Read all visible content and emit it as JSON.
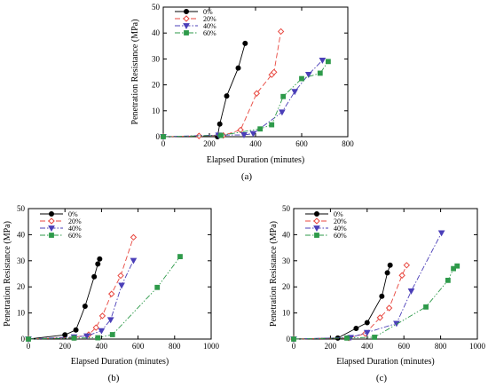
{
  "chart_data": [
    {
      "type": "line",
      "panel_label": "(a)",
      "xlabel": "Elapsed Duration (minutes)",
      "ylabel": "Penetration Resistance (MPa)",
      "xlim": [
        0,
        800
      ],
      "ylim": [
        0,
        50
      ],
      "xticks": [
        "0",
        "200",
        "400",
        "600",
        "800"
      ],
      "yticks": [
        "0",
        "10",
        "20",
        "30",
        "40",
        "50"
      ],
      "legend_position": "top-left",
      "series": [
        {
          "name": "0%",
          "color": "#000000",
          "dash": "solid",
          "marker": "filled-circle",
          "x": [
            0,
            235,
            245,
            275,
            325,
            355
          ],
          "y": [
            0,
            0,
            4.9,
            15.7,
            26.5,
            36
          ]
        },
        {
          "name": "20%",
          "color": "#e8473f",
          "dash": "long-dash",
          "marker": "open-diamond",
          "x": [
            0,
            155,
            260,
            335,
            405,
            470,
            480,
            510
          ],
          "y": [
            0,
            0.3,
            0.5,
            2.6,
            16.7,
            23.9,
            24.9,
            40.6
          ]
        },
        {
          "name": "40%",
          "color": "#4b3fb8",
          "dash": "dash-dot",
          "marker": "filled-triangle-down",
          "x": [
            0,
            240,
            350,
            390,
            515,
            570,
            630,
            690
          ],
          "y": [
            0,
            0.6,
            0.7,
            1.2,
            9.5,
            17.4,
            24.0,
            29.5
          ]
        },
        {
          "name": "60%",
          "color": "#2e9a4a",
          "dash": "dash-dot-dot",
          "marker": "filled-square",
          "x": [
            0,
            250,
            420,
            470,
            520,
            600,
            680,
            715
          ],
          "y": [
            0,
            0.5,
            3.0,
            4.6,
            15.5,
            22.4,
            24.5,
            29
          ]
        }
      ]
    },
    {
      "type": "line",
      "panel_label": "(b)",
      "xlabel": "Elapsed Duration (minutes)",
      "ylabel": "Penetration Resistance (MPa)",
      "xlim": [
        0,
        1000
      ],
      "ylim": [
        0,
        50
      ],
      "xticks": [
        "0",
        "200",
        "400",
        "600",
        "800",
        "1000"
      ],
      "yticks": [
        "0",
        "10",
        "20",
        "30",
        "40",
        "50"
      ],
      "legend_position": "top-left",
      "series": [
        {
          "name": "0%",
          "color": "#000000",
          "dash": "solid",
          "marker": "filled-circle",
          "x": [
            0,
            200,
            260,
            310,
            360,
            380,
            390
          ],
          "y": [
            0,
            1.6,
            3.5,
            12.6,
            23.9,
            28.8,
            30.7
          ]
        },
        {
          "name": "20%",
          "color": "#e8473f",
          "dash": "long-dash",
          "marker": "open-diamond",
          "x": [
            0,
            250,
            330,
            370,
            405,
            455,
            505,
            575
          ],
          "y": [
            0,
            0.6,
            1.7,
            4.4,
            8.9,
            17.3,
            24.3,
            39.0
          ]
        },
        {
          "name": "40%",
          "color": "#4b3fb8",
          "dash": "dash-dot",
          "marker": "filled-triangle-down",
          "x": [
            0,
            250,
            320,
            400,
            450,
            510,
            575
          ],
          "y": [
            0,
            0.8,
            1.2,
            3.2,
            7.4,
            20.6,
            30.1
          ]
        },
        {
          "name": "60%",
          "color": "#2e9a4a",
          "dash": "dash-dot-dot",
          "marker": "filled-square",
          "x": [
            0,
            250,
            380,
            460,
            705,
            830
          ],
          "y": [
            0,
            0.4,
            0.5,
            1.7,
            19.8,
            31.6
          ]
        }
      ]
    },
    {
      "type": "line",
      "panel_label": "(c)",
      "xlabel": "Elapsed Duration (minutes)",
      "ylabel": "Penetration Resistance (MPa)",
      "xlim": [
        0,
        1000
      ],
      "ylim": [
        0,
        50
      ],
      "xticks": [
        "0",
        "200",
        "400",
        "600",
        "800",
        "1000"
      ],
      "yticks": [
        "0",
        "10",
        "20",
        "30",
        "40",
        "50"
      ],
      "legend_position": "top-left",
      "series": [
        {
          "name": "0%",
          "color": "#000000",
          "dash": "solid",
          "marker": "filled-circle",
          "x": [
            0,
            240,
            340,
            400,
            480,
            510,
            525
          ],
          "y": [
            0,
            0.4,
            4.1,
            6.3,
            16.4,
            25.4,
            28.3
          ]
        },
        {
          "name": "20%",
          "color": "#e8473f",
          "dash": "long-dash",
          "marker": "open-diamond",
          "x": [
            0,
            300,
            390,
            470,
            520,
            590,
            615
          ],
          "y": [
            0,
            0.4,
            2.1,
            8.2,
            11.9,
            24.4,
            28.3
          ]
        },
        {
          "name": "40%",
          "color": "#4b3fb8",
          "dash": "dash-dot",
          "marker": "filled-triangle-down",
          "x": [
            0,
            310,
            400,
            560,
            640,
            805
          ],
          "y": [
            0,
            0.6,
            2.5,
            6.0,
            18.4,
            40.7
          ]
        },
        {
          "name": "60%",
          "color": "#2e9a4a",
          "dash": "dash-dot-dot",
          "marker": "filled-square",
          "x": [
            0,
            290,
            440,
            720,
            840,
            870,
            890
          ],
          "y": [
            0,
            0.4,
            0.7,
            12.3,
            22.5,
            27.0,
            28.0
          ]
        }
      ]
    }
  ]
}
